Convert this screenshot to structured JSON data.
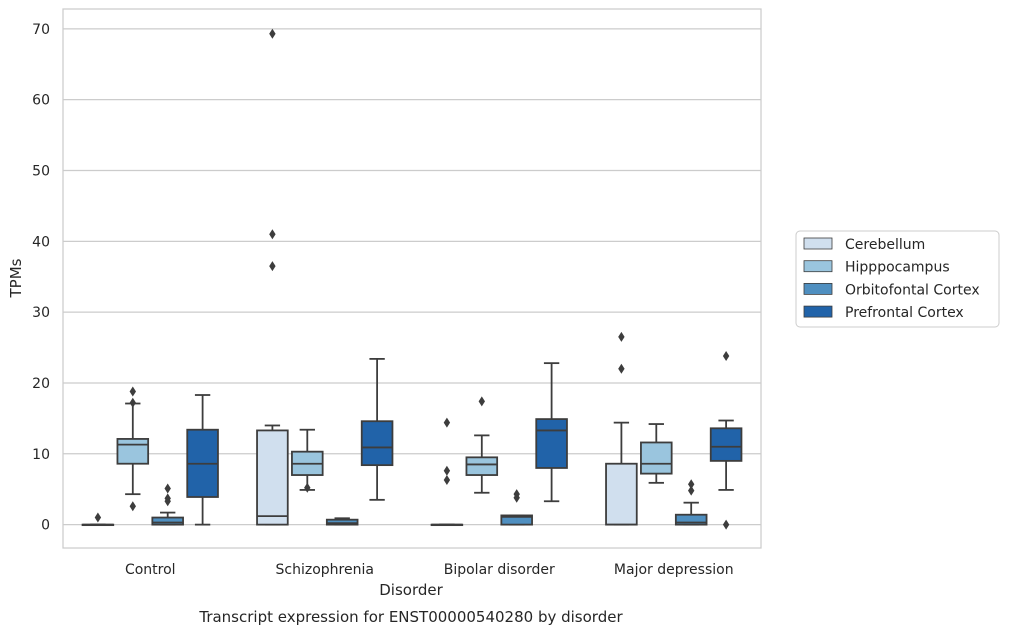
{
  "chart_data": {
    "type": "box",
    "title": "",
    "caption": "Transcript expression for ENST00000540280 by disorder",
    "xlabel": "Disorder",
    "ylabel": "TPMs",
    "ylim": [
      -3.3,
      72.8
    ],
    "yticks": [
      0,
      10,
      20,
      30,
      40,
      50,
      60,
      70
    ],
    "grid": "horizontal",
    "legend_placement": "right-center",
    "categories": [
      "Control",
      "Schizophrenia",
      "Bipolar disorder",
      "Major depression"
    ],
    "series": [
      {
        "name": "Cerebellum",
        "color": "#d0dfee",
        "boxes": [
          {
            "q1": 0,
            "median": 0,
            "q3": 0,
            "whisker_low": 0,
            "whisker_high": 0,
            "outliers": [
              1.0
            ]
          },
          {
            "q1": 0,
            "median": 1.2,
            "q3": 13.3,
            "whisker_low": 0,
            "whisker_high": 14.0,
            "outliers": [
              69.3,
              41.0,
              36.5
            ]
          },
          {
            "q1": 0,
            "median": 0,
            "q3": 0,
            "whisker_low": 0,
            "whisker_high": 0,
            "outliers": [
              14.4,
              7.6,
              6.3
            ]
          },
          {
            "q1": 0,
            "median": 0,
            "q3": 8.6,
            "whisker_low": 0,
            "whisker_high": 14.4,
            "outliers": [
              26.5,
              22.0
            ]
          }
        ]
      },
      {
        "name": "Hipppocampus",
        "color": "#9ac5de",
        "boxes": [
          {
            "q1": 8.6,
            "median": 11.3,
            "q3": 12.1,
            "whisker_low": 4.3,
            "whisker_high": 17.1,
            "outliers": [
              18.8,
              17.2,
              2.6
            ]
          },
          {
            "q1": 7.0,
            "median": 8.6,
            "q3": 10.3,
            "whisker_low": 4.9,
            "whisker_high": 13.4,
            "outliers": [
              5.2
            ]
          },
          {
            "q1": 7.0,
            "median": 8.5,
            "q3": 9.5,
            "whisker_low": 4.5,
            "whisker_high": 12.6,
            "outliers": [
              17.4
            ]
          },
          {
            "q1": 7.2,
            "median": 8.6,
            "q3": 11.6,
            "whisker_low": 5.9,
            "whisker_high": 14.2,
            "outliers": []
          }
        ]
      },
      {
        "name": "Orbitofontal Cortex",
        "color": "#4f8fc0",
        "boxes": [
          {
            "q1": 0,
            "median": 0.3,
            "q3": 1.0,
            "whisker_low": 0,
            "whisker_high": 1.7,
            "outliers": [
              5.1,
              3.7,
              3.3
            ]
          },
          {
            "q1": 0,
            "median": 0.2,
            "q3": 0.7,
            "whisker_low": 0,
            "whisker_high": 0.9,
            "outliers": []
          },
          {
            "q1": 0,
            "median": 1.1,
            "q3": 1.3,
            "whisker_low": 0,
            "whisker_high": 1.3,
            "outliers": [
              4.3,
              3.8
            ]
          },
          {
            "q1": 0,
            "median": 0.3,
            "q3": 1.4,
            "whisker_low": 0,
            "whisker_high": 3.1,
            "outliers": [
              5.7,
              4.8
            ]
          }
        ]
      },
      {
        "name": "Prefrontal Cortex",
        "color": "#2163a9",
        "boxes": [
          {
            "q1": 3.9,
            "median": 8.6,
            "q3": 13.4,
            "whisker_low": 0,
            "whisker_high": 18.3,
            "outliers": []
          },
          {
            "q1": 8.4,
            "median": 10.9,
            "q3": 14.6,
            "whisker_low": 3.5,
            "whisker_high": 23.4,
            "outliers": []
          },
          {
            "q1": 8.0,
            "median": 13.3,
            "q3": 14.9,
            "whisker_low": 3.3,
            "whisker_high": 22.8,
            "outliers": []
          },
          {
            "q1": 9.0,
            "median": 11.0,
            "q3": 13.6,
            "whisker_low": 4.9,
            "whisker_high": 14.7,
            "outliers": [
              23.8,
              0
            ]
          }
        ]
      }
    ]
  }
}
